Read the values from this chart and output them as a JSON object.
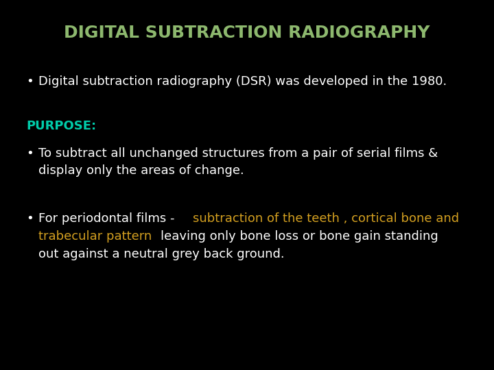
{
  "background_color": "#000000",
  "title": "DIGITAL SUBTRACTION RADIOGRAPHY",
  "title_color": "#8db86e",
  "title_fontsize": 18,
  "title_bold": false,
  "bullet1": "Digital subtraction radiography (DSR) was developed in the 1980.",
  "bullet1_color": "#ffffff",
  "purpose_label": "PURPOSE:",
  "purpose_color": "#00ccaa",
  "bullet2_line1": "To subtract all unchanged structures from a pair of serial films &",
  "bullet2_line2": "display only the areas of change.",
  "bullet2_color": "#ffffff",
  "b3_white1": "For periodontal films - ",
  "b3_orange1": "subtraction of the teeth , cortical bone and",
  "b3_orange2": "trabecular pattern ",
  "b3_white2": "leaving only bone loss or bone gain standing",
  "b3_white3": "out against a neutral grey back ground.",
  "bullet3_color": "#ffffff",
  "bullet3_colored_color": "#d4a020",
  "text_fontsize": 13,
  "purpose_fontsize": 13,
  "bullet_color": "#ffffff"
}
